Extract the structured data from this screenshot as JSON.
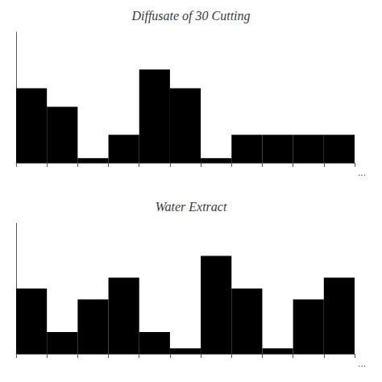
{
  "chart_data": [
    {
      "type": "bar",
      "title": "Diffusate of 30 Cutting",
      "categories": [
        null,
        null,
        null,
        null,
        null,
        null,
        null,
        null,
        null,
        null,
        null
      ],
      "values": [
        8,
        6,
        0.5,
        3,
        10,
        8,
        0.5,
        3,
        3,
        3,
        3
      ],
      "color": "#000000",
      "ylim": [
        0,
        14
      ],
      "annotation": "...",
      "grid": false,
      "tick_labels": false
    },
    {
      "type": "bar",
      "title": "Water Extract",
      "categories": [
        null,
        null,
        null,
        null,
        null,
        null,
        null,
        null,
        null,
        null,
        null
      ],
      "values": [
        6,
        2,
        5,
        7,
        2,
        0.5,
        9,
        6,
        0.5,
        5,
        7
      ],
      "color": "#000000",
      "ylim": [
        0,
        12
      ],
      "annotation": "...",
      "grid": false,
      "tick_labels": false
    }
  ]
}
